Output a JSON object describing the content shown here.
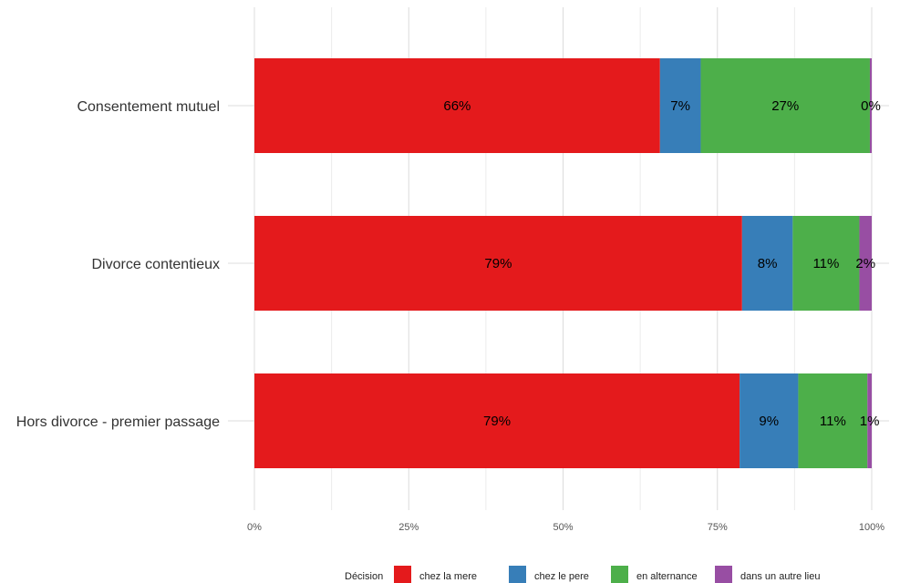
{
  "chart_data": {
    "type": "bar",
    "orientation": "horizontal",
    "stacked": true,
    "categories": [
      "Consentement mutuel",
      "Divorce contentieux",
      "Hors divorce - premier passage"
    ],
    "series": [
      {
        "name": "chez la mere",
        "color": "#e41a1c",
        "values": [
          0.657,
          0.79,
          0.786
        ],
        "labels": [
          "66%",
          "79%",
          "79%"
        ]
      },
      {
        "name": "chez le pere",
        "color": "#377eb8",
        "values": [
          0.066,
          0.082,
          0.095
        ],
        "labels": [
          "7%",
          "8%",
          "9%"
        ]
      },
      {
        "name": "en alternance",
        "color": "#4daf4a",
        "values": [
          0.274,
          0.108,
          0.112
        ],
        "labels": [
          "27%",
          "11%",
          "11%"
        ]
      },
      {
        "name": "dans un autre lieu",
        "color": "#984ea3",
        "values": [
          0.003,
          0.02,
          0.007
        ],
        "labels": [
          "0%",
          "2%",
          "1%"
        ]
      }
    ],
    "x_ticks": [
      "0%",
      "25%",
      "50%",
      "75%",
      "100%"
    ],
    "xlim": [
      0,
      1
    ],
    "grid": true,
    "legend": {
      "title": "Décision",
      "position": "bottom"
    }
  }
}
